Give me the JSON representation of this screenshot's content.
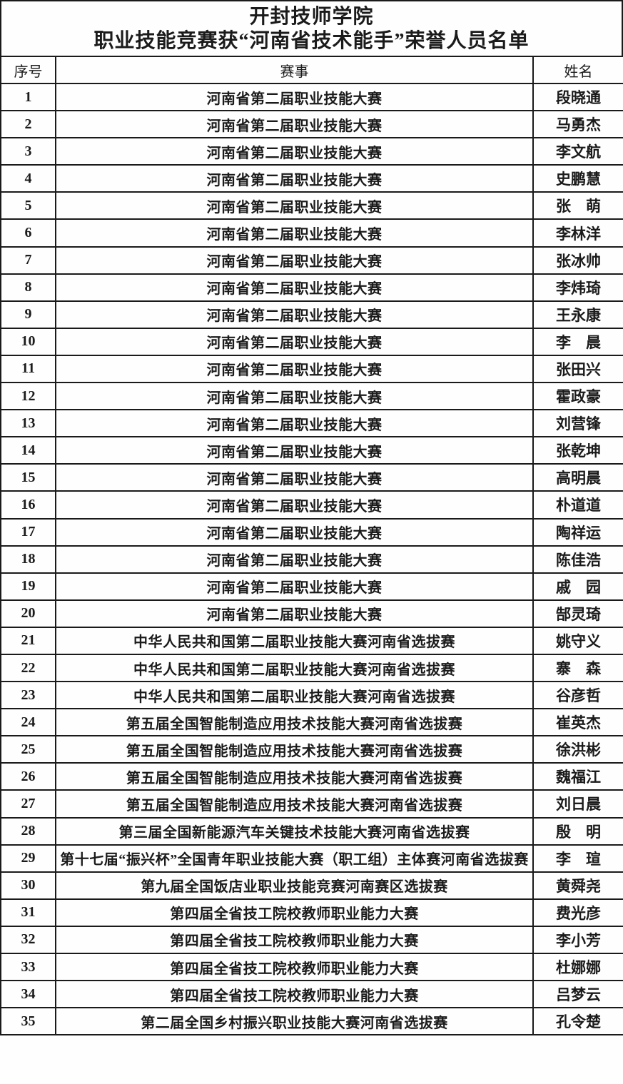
{
  "title": {
    "line1": "开封技师学院",
    "line2": "职业技能竞赛获“河南省技术能手”荣誉人员名单"
  },
  "colors": {
    "background": "#fefefe",
    "text": "#1b1b1b",
    "border": "#1a1a1a"
  },
  "table": {
    "headers": [
      "序号",
      "赛事",
      "姓名"
    ],
    "rows": [
      {
        "no": "1",
        "event": "河南省第二届职业技能大赛",
        "name": "段晓通"
      },
      {
        "no": "2",
        "event": "河南省第二届职业技能大赛",
        "name": "马勇杰"
      },
      {
        "no": "3",
        "event": "河南省第二届职业技能大赛",
        "name": "李文航"
      },
      {
        "no": "4",
        "event": "河南省第二届职业技能大赛",
        "name": "史鹏慧"
      },
      {
        "no": "5",
        "event": "河南省第二届职业技能大赛",
        "name": "张　萌"
      },
      {
        "no": "6",
        "event": "河南省第二届职业技能大赛",
        "name": "李林洋"
      },
      {
        "no": "7",
        "event": "河南省第二届职业技能大赛",
        "name": "张冰帅"
      },
      {
        "no": "8",
        "event": "河南省第二届职业技能大赛",
        "name": "李炜琦"
      },
      {
        "no": "9",
        "event": "河南省第二届职业技能大赛",
        "name": "王永康"
      },
      {
        "no": "10",
        "event": "河南省第二届职业技能大赛",
        "name": "李　晨"
      },
      {
        "no": "11",
        "event": "河南省第二届职业技能大赛",
        "name": "张田兴"
      },
      {
        "no": "12",
        "event": "河南省第二届职业技能大赛",
        "name": "霍政豪"
      },
      {
        "no": "13",
        "event": "河南省第二届职业技能大赛",
        "name": "刘营锋"
      },
      {
        "no": "14",
        "event": "河南省第二届职业技能大赛",
        "name": "张乾坤"
      },
      {
        "no": "15",
        "event": "河南省第二届职业技能大赛",
        "name": "高明晨"
      },
      {
        "no": "16",
        "event": "河南省第二届职业技能大赛",
        "name": "朴道道"
      },
      {
        "no": "17",
        "event": "河南省第二届职业技能大赛",
        "name": "陶祥运"
      },
      {
        "no": "18",
        "event": "河南省第二届职业技能大赛",
        "name": "陈佳浩"
      },
      {
        "no": "19",
        "event": "河南省第二届职业技能大赛",
        "name": "戚　园"
      },
      {
        "no": "20",
        "event": "河南省第二届职业技能大赛",
        "name": "郜灵琦"
      },
      {
        "no": "21",
        "event": "中华人民共和国第二届职业技能大赛河南省选拔赛",
        "name": "姚守义"
      },
      {
        "no": "22",
        "event": "中华人民共和国第二届职业技能大赛河南省选拔赛",
        "name": "寨　森"
      },
      {
        "no": "23",
        "event": "中华人民共和国第二届职业技能大赛河南省选拔赛",
        "name": "谷彦哲"
      },
      {
        "no": "24",
        "event": "第五届全国智能制造应用技术技能大赛河南省选拔赛",
        "name": "崔英杰"
      },
      {
        "no": "25",
        "event": "第五届全国智能制造应用技术技能大赛河南省选拔赛",
        "name": "徐洪彬"
      },
      {
        "no": "26",
        "event": "第五届全国智能制造应用技术技能大赛河南省选拔赛",
        "name": "魏福江"
      },
      {
        "no": "27",
        "event": "第五届全国智能制造应用技术技能大赛河南省选拔赛",
        "name": "刘日晨"
      },
      {
        "no": "28",
        "event": "第三届全国新能源汽车关键技术技能大赛河南省选拔赛",
        "name": "殷　明"
      },
      {
        "no": "29",
        "event": "第十七届“振兴杯”全国青年职业技能大赛（职工组）主体赛河南省选拔赛",
        "name": "李　瑄"
      },
      {
        "no": "30",
        "event": "第九届全国饭店业职业技能竞赛河南赛区选拔赛",
        "name": "黄舜尧"
      },
      {
        "no": "31",
        "event": "第四届全省技工院校教师职业能力大赛",
        "name": "费光彦"
      },
      {
        "no": "32",
        "event": "第四届全省技工院校教师职业能力大赛",
        "name": "李小芳"
      },
      {
        "no": "33",
        "event": "第四届全省技工院校教师职业能力大赛",
        "name": "杜娜娜"
      },
      {
        "no": "34",
        "event": "第四届全省技工院校教师职业能力大赛",
        "name": "吕梦云"
      },
      {
        "no": "35",
        "event": "第二届全国乡村振兴职业技能大赛河南省选拔赛",
        "name": "孔令楚"
      }
    ]
  }
}
